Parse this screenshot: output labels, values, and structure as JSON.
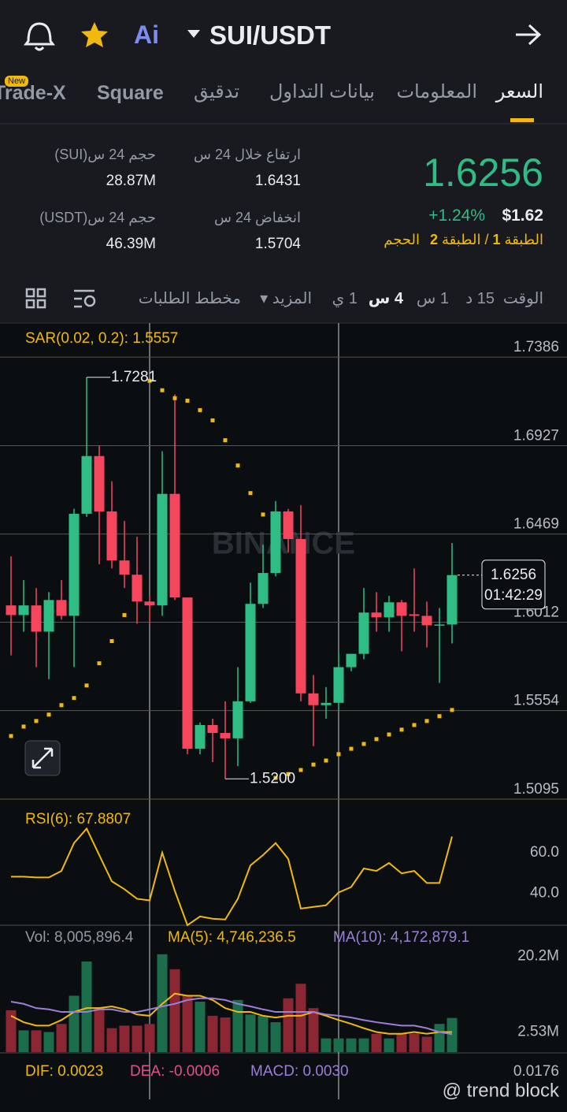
{
  "header": {
    "ai": "Ai",
    "pair": "SUI/USDT"
  },
  "tabs": [
    "السعر",
    "المعلومات",
    "بيانات التداول",
    "تدقيق",
    "Square",
    "Trade-X"
  ],
  "badge": "New",
  "ticker": {
    "price": "1.6256",
    "change": "+1.24%",
    "usd": "$1.62",
    "depth": [
      "الطبقة",
      "1",
      "/",
      "الطبقة",
      "2",
      "الحجم"
    ],
    "stats": [
      {
        "label": "ارتفاع خلال 24 س",
        "value": "1.6431"
      },
      {
        "label": "حجم 24 س(SUI)",
        "value": "28.87M"
      },
      {
        "label": "انخفاض 24 س",
        "value": "1.5704"
      },
      {
        "label": "حجم 24 س(USDT)",
        "value": "46.39M"
      }
    ]
  },
  "timeframes": [
    "الوقت",
    "15 د",
    "1 س",
    "4 س",
    "1 ي",
    "المزيد",
    "مخطط الطلبات"
  ],
  "chart": {
    "type": "candlestick",
    "watermark": "BINANCE",
    "sar_label": "SAR(0.02, 0.2): 1.5557",
    "high_label": "1.7281",
    "low_label": "1.5200",
    "last_price": "1.6256",
    "countdown": "01:42:29",
    "ylim": [
      1.5095,
      1.7562
    ],
    "yticks": [
      1.7386,
      1.6927,
      1.6469,
      1.6012,
      1.5554,
      1.5095
    ],
    "up_color": "#2ebd85",
    "down_color": "#f6465d",
    "sar_color": "#f0b90b",
    "candles": {
      "open": [
        1.6099,
        1.6049,
        1.6099,
        1.5963,
        1.6127,
        1.6045,
        1.6574,
        1.6873,
        1.6586,
        1.6332,
        1.6258,
        1.6119,
        1.6099,
        1.6677,
        1.614,
        1.5356,
        1.5479,
        1.5438,
        1.541,
        1.5602,
        1.6107,
        1.6267,
        1.6586,
        1.6443,
        1.5643,
        1.5582,
        1.5594,
        1.5779,
        1.5848,
        1.6062,
        1.6037,
        1.6115,
        1.6053,
        1.6045,
        1.5996,
        1.6
      ],
      "high": [
        1.6353,
        1.623,
        1.6189,
        1.6168,
        1.623,
        1.66,
        1.7281,
        1.6927,
        1.6742,
        1.6537,
        1.6455,
        1.6148,
        1.6898,
        1.7193,
        1.614,
        1.5492,
        1.5512,
        1.5602,
        1.5779,
        1.6217,
        1.6414,
        1.664,
        1.6599,
        1.6619,
        1.5738,
        1.5676,
        1.5861,
        1.5848,
        1.6189,
        1.6168,
        1.6148,
        1.6127,
        1.6291,
        1.6119,
        1.6086,
        1.6422
      ],
      "low": [
        1.584,
        1.5963,
        1.5779,
        1.5717,
        1.6025,
        1.5779,
        1.6558,
        1.6312,
        1.6291,
        1.6189,
        1.6004,
        1.6004,
        1.6045,
        1.6127,
        1.5328,
        1.5328,
        1.5287,
        1.52,
        1.5266,
        1.5594,
        1.6086,
        1.625,
        1.6373,
        1.5602,
        1.5369,
        1.5512,
        1.5553,
        1.5758,
        1.582,
        1.5963,
        1.5963,
        1.5861,
        1.5963,
        1.5881,
        1.5697,
        1.5902
      ],
      "close": [
        1.6049,
        1.6099,
        1.5963,
        1.6127,
        1.6045,
        1.6574,
        1.6873,
        1.6586,
        1.6332,
        1.6258,
        1.6119,
        1.6099,
        1.6677,
        1.614,
        1.5356,
        1.5479,
        1.5438,
        1.541,
        1.5602,
        1.6107,
        1.6267,
        1.6586,
        1.6443,
        1.5643,
        1.5582,
        1.5594,
        1.5779,
        1.5848,
        1.6062,
        1.6037,
        1.6115,
        1.6045,
        1.6045,
        1.5996,
        1.6,
        1.6256
      ]
    },
    "sar": [
      1.5422,
      1.5471,
      1.55,
      1.5533,
      1.5582,
      1.5619,
      1.5684,
      1.5799,
      1.5914,
      1.6049,
      null,
      1.7263,
      1.7214,
      1.7173,
      1.716,
      1.7111,
      1.7058,
      1.6955,
      1.6824,
      1.6681,
      1.657,
      1.5205,
      1.5225,
      1.5246,
      1.5274,
      1.5295,
      1.5328,
      1.5356,
      1.5381,
      1.5406,
      1.543,
      1.5455,
      1.5479,
      1.55,
      1.5525,
      1.5557
    ]
  },
  "rsi": {
    "type": "line",
    "label": "RSI(6): 67.8807",
    "color": "#f0b90b",
    "ylim": [
      24.3,
      86.3
    ],
    "yticks": [
      {
        "value": 60,
        "label": "60.0"
      },
      {
        "value": 40,
        "label": "40.0"
      }
    ],
    "values": [
      48.2,
      48.2,
      47.8,
      47.8,
      51.0,
      64.7,
      71.8,
      58.8,
      45.9,
      42.0,
      37.3,
      36.5,
      60.0,
      41.2,
      24.3,
      28.6,
      27.5,
      27.1,
      37.3,
      53.7,
      58.8,
      64.7,
      56.9,
      32.5,
      33.3,
      34.1,
      40.4,
      43.1,
      52.2,
      51.0,
      54.9,
      49.8,
      51.0,
      45.1,
      45.1,
      67.8807
    ]
  },
  "volume": {
    "type": "bar",
    "labels": [
      "Vol: 8,005,896.4",
      "MA(5): 4,746,236.5",
      "MA(10): 4,172,879.1"
    ],
    "ylim": [
      0,
      29.7
    ],
    "yticks": [
      {
        "value": 20.2,
        "label": "20.2M"
      },
      {
        "value": 2.53,
        "label": "2.53M"
      }
    ],
    "up_color": "#1b6d4b",
    "down_color": "#8b2633",
    "values": [
      9.8,
      5.1,
      5.1,
      4.7,
      6.6,
      13.2,
      21.2,
      10.3,
      5.6,
      6.2,
      6.2,
      6.6,
      22.9,
      19.4,
      13.2,
      11.8,
      8.5,
      8.1,
      12.2,
      8.8,
      8.5,
      7.0,
      12.6,
      16.0,
      10.3,
      3.2,
      3.2,
      3.2,
      3.2,
      4.3,
      3.2,
      4.3,
      4.3,
      3.6,
      6.6,
      8.0
    ],
    "series": [
      {
        "name": "MA(5)",
        "color": "#f0b90b",
        "values": [
          8.5,
          7.0,
          6.2,
          6.2,
          7.5,
          9.4,
          10.3,
          10.3,
          10.7,
          10.0,
          8.8,
          8.5,
          11.3,
          13.7,
          13.2,
          13.2,
          12.2,
          10.3,
          9.4,
          9.4,
          8.5,
          8.1,
          8.5,
          8.5,
          9.4,
          8.5,
          7.5,
          6.6,
          5.6,
          4.7,
          4.3,
          4.3,
          4.7,
          4.3,
          4.7,
          4.7
        ]
      },
      {
        "name": "MA(10)",
        "color": "#9c7fd8",
        "values": [
          11.8,
          11.3,
          10.3,
          10.0,
          9.4,
          9.4,
          9.4,
          10.0,
          10.0,
          9.4,
          9.4,
          10.0,
          10.7,
          11.3,
          12.2,
          12.6,
          12.6,
          12.2,
          11.3,
          10.7,
          10.0,
          9.4,
          9.4,
          9.4,
          9.4,
          8.8,
          8.5,
          8.1,
          7.5,
          7.0,
          6.6,
          6.2,
          6.2,
          5.6,
          4.7,
          4.2
        ]
      }
    ]
  },
  "macd": {
    "labels": [
      "DIF: 0.0023",
      "DEA: -0.0006",
      "MACD: 0.0030"
    ],
    "scale_label": "0.0176"
  },
  "footer": "@ trend block"
}
